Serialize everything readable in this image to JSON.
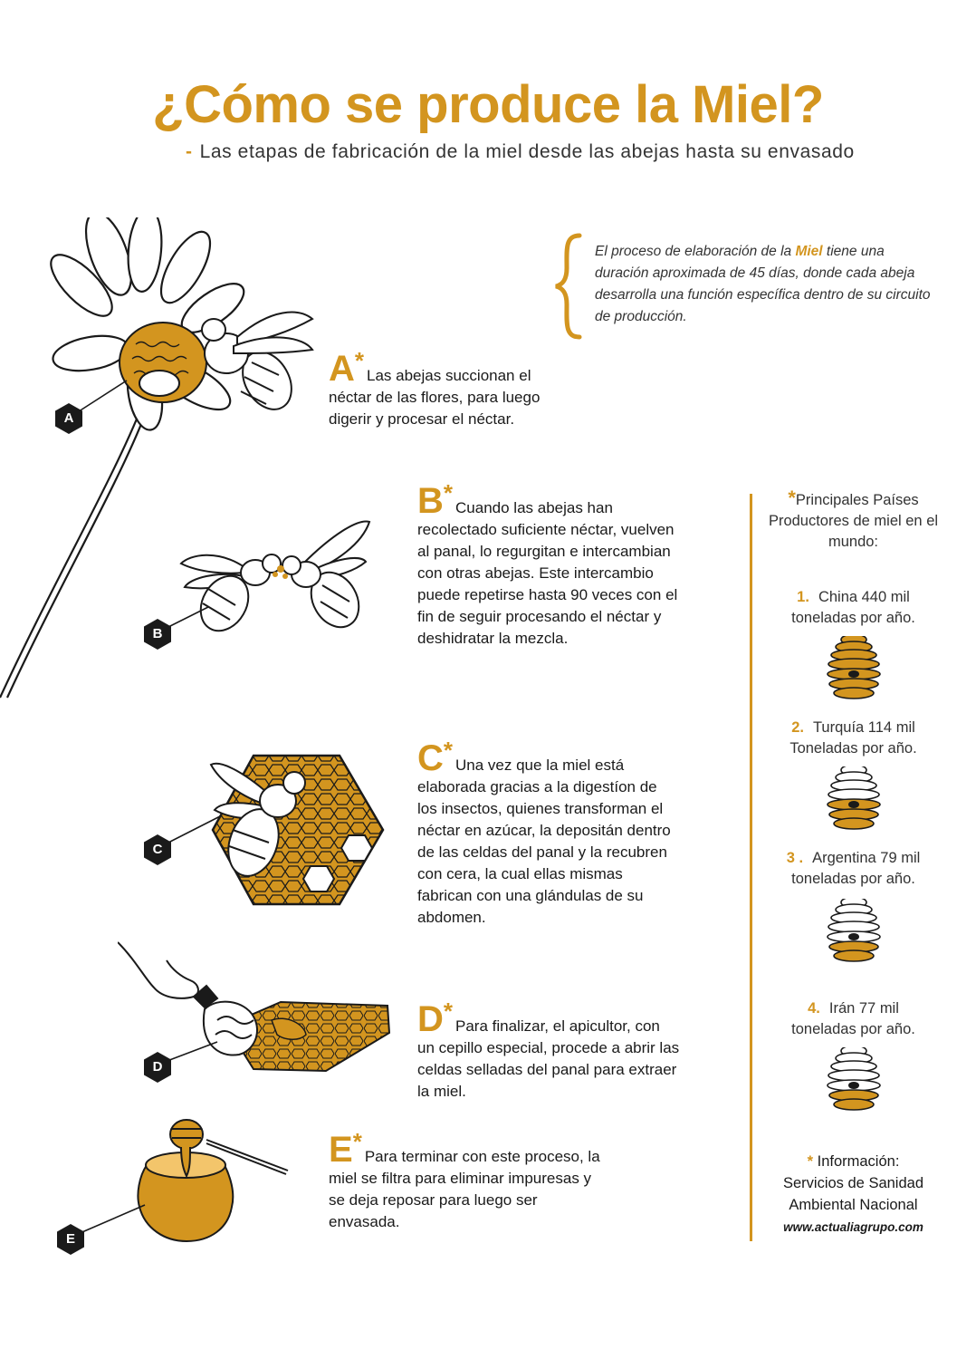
{
  "header": {
    "title": "¿Cómo se produce la Miel?",
    "subtitle_dash": "-",
    "subtitle": "Las  etapas de fabricación de la miel desde las abejas hasta su envasado"
  },
  "intro": {
    "before": "El proceso de elaboración de la ",
    "highlight": "Miel",
    "after": " tiene una duración aproximada de 45 días, donde cada abeja desarrolla una función específica dentro de su circuito de producción."
  },
  "steps": [
    {
      "letter": "A",
      "star": "*",
      "text": "Las abejas succionan el néctar de las flores, para luego digerir y procesar el néctar."
    },
    {
      "letter": "B",
      "star": "*",
      "text": "Cuando las abejas han recolectado suficiente néctar, vuelven al panal, lo regurgitan e intercambian con otras abejas. Este intercambio puede repetirse hasta 90 veces con el fin de seguir procesando el néctar y deshidratar la mezcla."
    },
    {
      "letter": "C",
      "star": "*",
      "text": "Una vez que la miel está elaborada gracias a la digestíon de los insectos, quienes transforman el néctar en azúcar, la depositán dentro de las celdas del panal y la recubren con cera, la cual ellas mismas fabrican con una glándulas de su abdomen."
    },
    {
      "letter": "D",
      "star": "*",
      "text": "Para finalizar, el apicultor, con un cepillo especial, procede a abrir las celdas selladas del panal para extraer la miel."
    },
    {
      "letter": "E",
      "star": "*",
      "text": "Para terminar con este proceso, la miel se filtra para eliminar impuresas y se deja reposar para luego ser envasada."
    }
  ],
  "labels": [
    "A",
    "B",
    "C",
    "D",
    "E"
  ],
  "sidebar": {
    "heading_star": "*",
    "heading": "Principales Países Productores de miel en el mundo:",
    "countries": [
      {
        "num": "1.",
        "name": "China  440 mil",
        "unit": "toneladas por año.",
        "fill_fraction": 1.0
      },
      {
        "num": "2.",
        "name": "Turquía 114 mil",
        "unit": "Toneladas por año.",
        "fill_fraction": 0.5
      },
      {
        "num": "3 .",
        "name": "Argentina 79 mil",
        "unit": "toneladas por año.",
        "fill_fraction": 0.33
      },
      {
        "num": "4.",
        "name": "Irán 77 mil",
        "unit": "toneladas por año.",
        "fill_fraction": 0.25
      }
    ],
    "source_star": "*",
    "source_label": "Información:",
    "source_name": "Servicios de Sanidad Ambiental Nacional",
    "source_url": "www.actualiagrupo.com"
  },
  "colors": {
    "accent": "#d3951f",
    "text": "#1a1a1a",
    "hex_label": "#1a1a1a"
  }
}
